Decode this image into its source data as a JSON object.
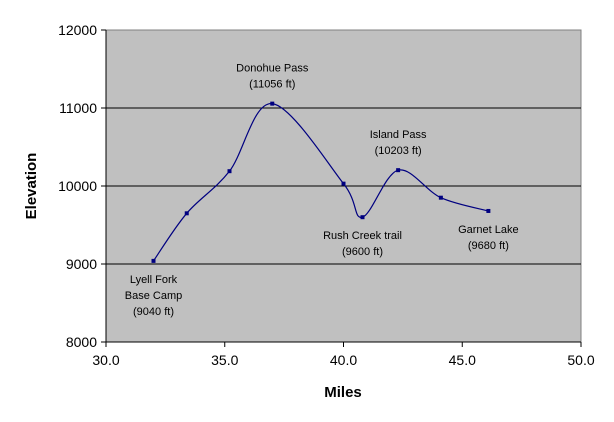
{
  "chart_data": {
    "type": "line",
    "title": "",
    "xlabel": "Miles",
    "ylabel": "Elevation",
    "xlim": [
      30.0,
      50.0
    ],
    "ylim": [
      8000,
      12000
    ],
    "x_ticks": [
      "30.0",
      "35.0",
      "40.0",
      "45.0",
      "50.0"
    ],
    "y_ticks": [
      "8000",
      "9000",
      "10000",
      "11000",
      "12000"
    ],
    "grid": "horizontal",
    "legend": "none",
    "colors": {
      "plot_background": "#c0c0c0",
      "series_line": "#000080",
      "gridline": "#000000"
    },
    "series": [
      {
        "x": [
          32.0,
          33.4,
          35.2,
          37.0,
          40.0,
          40.8,
          42.3,
          44.1,
          46.1
        ],
        "y": [
          9040,
          9650,
          10190,
          11056,
          10030,
          9600,
          10203,
          9850,
          9680
        ]
      }
    ],
    "annotations": [
      {
        "x": 32.0,
        "y": 9040,
        "lines": [
          "Lyell Fork",
          "Base Camp",
          "(9040 ft)"
        ],
        "position": "below"
      },
      {
        "x": 37.0,
        "y": 11056,
        "lines": [
          "Donohue Pass",
          "(11056 ft)"
        ],
        "position": "above"
      },
      {
        "x": 40.8,
        "y": 9600,
        "lines": [
          "Rush Creek trail",
          "(9600 ft)"
        ],
        "position": "below"
      },
      {
        "x": 42.3,
        "y": 10203,
        "lines": [
          "Island Pass",
          "(10203 ft)"
        ],
        "position": "above"
      },
      {
        "x": 46.1,
        "y": 9680,
        "lines": [
          "Garnet Lake",
          "(9680 ft)"
        ],
        "position": "below"
      }
    ]
  }
}
